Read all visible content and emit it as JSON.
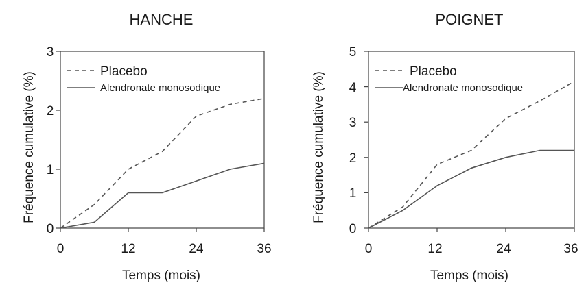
{
  "chart_data": [
    {
      "type": "line",
      "title": "HANCHE",
      "xlabel": "Temps (mois)",
      "ylabel": "Fréquence cumulative (%)",
      "xlim": [
        0,
        36
      ],
      "ylim": [
        0,
        3
      ],
      "xticks": [
        "0",
        "12",
        "24",
        "36"
      ],
      "yticks": [
        "0",
        "1",
        "2",
        "3"
      ],
      "grid": false,
      "legend_position": "top-left",
      "series": [
        {
          "name": "Placebo",
          "style": "dashed",
          "color": "#555555",
          "x": [
            0,
            6,
            12,
            18,
            24,
            30,
            36
          ],
          "y": [
            0,
            0.4,
            1.0,
            1.3,
            1.9,
            2.1,
            2.2
          ]
        },
        {
          "name": "Alendronate monosodique",
          "style": "solid",
          "color": "#555555",
          "x": [
            0,
            6,
            12,
            18,
            24,
            30,
            36
          ],
          "y": [
            0,
            0.1,
            0.6,
            0.6,
            0.8,
            1.0,
            1.1
          ]
        }
      ]
    },
    {
      "type": "line",
      "title": "POIGNET",
      "xlabel": "Temps (mois)",
      "ylabel": "Fréquence cumulative (%)",
      "xlim": [
        0,
        36
      ],
      "ylim": [
        0,
        5
      ],
      "xticks": [
        "0",
        "12",
        "24",
        "36"
      ],
      "yticks": [
        "0",
        "1",
        "2",
        "3",
        "4",
        "5"
      ],
      "grid": false,
      "legend_position": "top-left",
      "series": [
        {
          "name": "Placebo",
          "style": "dashed",
          "color": "#555555",
          "x": [
            0,
            6,
            12,
            18,
            24,
            30,
            36
          ],
          "y": [
            0,
            0.6,
            1.8,
            2.2,
            3.1,
            3.6,
            4.15
          ]
        },
        {
          "name": "Alendronate monosodique",
          "style": "solid",
          "color": "#555555",
          "x": [
            0,
            6,
            12,
            18,
            24,
            30,
            36
          ],
          "y": [
            0,
            0.5,
            1.2,
            1.7,
            2.0,
            2.2,
            2.2
          ]
        }
      ]
    }
  ]
}
